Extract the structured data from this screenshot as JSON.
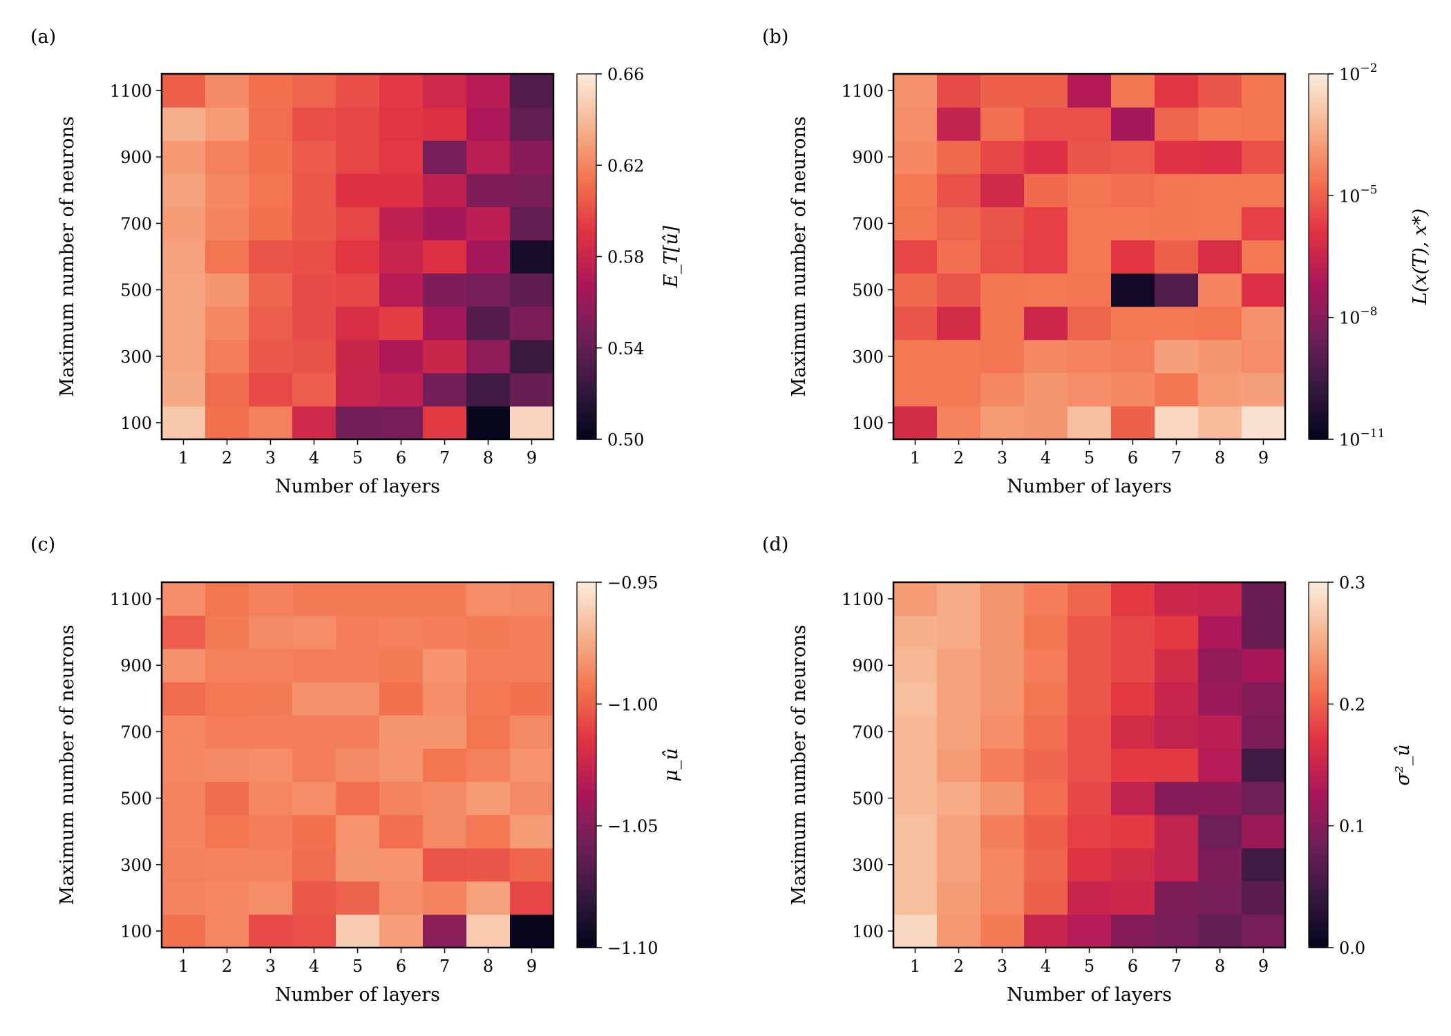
{
  "figure": {
    "common": {
      "xlabel": "Number of layers",
      "ylabel": "Maximum number of neurons",
      "x_tick_labels": [
        "1",
        "2",
        "3",
        "4",
        "5",
        "6",
        "7",
        "8",
        "9"
      ],
      "y_tick_labels": [
        "100",
        "300",
        "500",
        "700",
        "900",
        "1100"
      ]
    }
  },
  "colors": {
    "rocket_stops": [
      "#03051a",
      "#35193e",
      "#701f57",
      "#ad1759",
      "#e13342",
      "#f37651",
      "#f6b48f",
      "#faebdd"
    ],
    "frame": "#000000",
    "background": "#ffffff"
  },
  "chart_data": [
    {
      "id": "a",
      "panel_label": "(a)",
      "type": "heatmap",
      "title": "",
      "xlabel": "Number of layers",
      "ylabel": "Maximum number of neurons",
      "x": [
        1,
        2,
        3,
        4,
        5,
        6,
        7,
        8,
        9
      ],
      "y": [
        100,
        200,
        300,
        400,
        500,
        600,
        700,
        800,
        900,
        1000,
        1100
      ],
      "scale": "linear",
      "vmin": 0.5,
      "vmax": 0.66,
      "colorbar_label": "E_T[û]",
      "colorbar_ticks": [
        0.5,
        0.54,
        0.58,
        0.62,
        0.66
      ],
      "colorbar_tick_labels": [
        "0.50",
        "0.54",
        "0.58",
        "0.62",
        "0.66"
      ],
      "values": [
        [
          0.645,
          0.613,
          0.618,
          0.583,
          0.547,
          0.548,
          0.594,
          0.502,
          0.651
        ],
        [
          0.633,
          0.611,
          0.599,
          0.606,
          0.58,
          0.576,
          0.547,
          0.527,
          0.542
        ],
        [
          0.632,
          0.617,
          0.604,
          0.602,
          0.581,
          0.57,
          0.581,
          0.557,
          0.525
        ],
        [
          0.632,
          0.621,
          0.606,
          0.6,
          0.587,
          0.595,
          0.565,
          0.535,
          0.55
        ],
        [
          0.632,
          0.626,
          0.609,
          0.6,
          0.598,
          0.573,
          0.551,
          0.548,
          0.539
        ],
        [
          0.63,
          0.614,
          0.603,
          0.601,
          0.592,
          0.58,
          0.589,
          0.566,
          0.51
        ],
        [
          0.628,
          0.62,
          0.613,
          0.604,
          0.598,
          0.577,
          0.566,
          0.575,
          0.541
        ],
        [
          0.63,
          0.621,
          0.614,
          0.604,
          0.59,
          0.59,
          0.576,
          0.551,
          0.549
        ],
        [
          0.627,
          0.618,
          0.613,
          0.605,
          0.598,
          0.593,
          0.548,
          0.574,
          0.555
        ],
        [
          0.636,
          0.628,
          0.612,
          0.601,
          0.598,
          0.592,
          0.589,
          0.568,
          0.54
        ],
        [
          0.607,
          0.622,
          0.613,
          0.608,
          0.601,
          0.593,
          0.583,
          0.573,
          0.534
        ]
      ]
    },
    {
      "id": "b",
      "panel_label": "(b)",
      "type": "heatmap",
      "title": "",
      "xlabel": "Number of layers",
      "ylabel": "Maximum number of neurons",
      "x": [
        1,
        2,
        3,
        4,
        5,
        6,
        7,
        8,
        9
      ],
      "y": [
        100,
        200,
        300,
        400,
        500,
        600,
        700,
        800,
        900,
        1000,
        1100
      ],
      "scale": "log10",
      "vmin": 1e-11,
      "vmax": 0.01,
      "colorbar_label": "L(x(T), x*)",
      "colorbar_ticks": [
        1e-11,
        1e-08,
        1e-05,
        0.01
      ],
      "colorbar_tick_labels": [
        {
          "base": "10",
          "exp": "−11"
        },
        {
          "base": "10",
          "exp": "−8"
        },
        {
          "base": "10",
          "exp": "−5"
        },
        {
          "base": "10",
          "exp": "−2"
        }
      ],
      "values": [
        [
          -6.2,
          -4.3,
          -3.8,
          -3.9,
          -3.0,
          -5.0,
          -2.5,
          -3.1,
          -2.2
        ],
        [
          -4.5,
          -4.5,
          -4.2,
          -3.9,
          -4.1,
          -4.2,
          -4.6,
          -3.8,
          -3.7
        ],
        [
          -4.5,
          -4.5,
          -4.6,
          -4.2,
          -4.3,
          -4.4,
          -3.7,
          -3.9,
          -4.1
        ],
        [
          -5.2,
          -6.2,
          -4.6,
          -6.4,
          -4.9,
          -4.5,
          -4.5,
          -4.6,
          -4.0
        ],
        [
          -4.8,
          -5.2,
          -4.6,
          -4.5,
          -4.6,
          -10.6,
          -9.1,
          -4.3,
          -6.0
        ],
        [
          -5.5,
          -4.7,
          -5.3,
          -5.6,
          -4.5,
          -5.8,
          -5.0,
          -6.1,
          -4.5
        ],
        [
          -4.6,
          -4.9,
          -5.2,
          -5.6,
          -4.5,
          -4.5,
          -4.6,
          -4.5,
          -5.6
        ],
        [
          -4.5,
          -5.3,
          -6.3,
          -4.8,
          -4.6,
          -4.7,
          -4.6,
          -4.5,
          -4.5
        ],
        [
          -4.2,
          -4.8,
          -5.5,
          -6.0,
          -5.2,
          -5.1,
          -5.9,
          -6.0,
          -5.3
        ],
        [
          -4.1,
          -6.6,
          -4.7,
          -5.3,
          -5.3,
          -7.3,
          -4.9,
          -4.5,
          -4.6
        ],
        [
          -4.0,
          -5.4,
          -5.0,
          -5.0,
          -7.0,
          -4.6,
          -5.8,
          -5.2,
          -4.6
        ]
      ]
    },
    {
      "id": "c",
      "panel_label": "(c)",
      "type": "heatmap",
      "title": "",
      "xlabel": "Number of layers",
      "ylabel": "Maximum number of neurons",
      "x": [
        1,
        2,
        3,
        4,
        5,
        6,
        7,
        8,
        9
      ],
      "y": [
        100,
        200,
        300,
        400,
        500,
        600,
        700,
        800,
        900,
        1000,
        1100
      ],
      "scale": "linear",
      "vmin": -1.1,
      "vmax": -0.95,
      "colorbar_label": "μ_û",
      "colorbar_ticks": [
        -1.1,
        -1.05,
        -1.0,
        -0.95
      ],
      "colorbar_tick_labels": [
        "−1.10",
        "−1.05",
        "−1.00",
        "−0.95"
      ],
      "values": [
        [
          -0.994,
          -0.987,
          -1.007,
          -1.005,
          -0.962,
          -0.979,
          -1.048,
          -0.963,
          -1.098
        ],
        [
          -0.988,
          -0.987,
          -0.985,
          -1.002,
          -0.999,
          -0.985,
          -0.988,
          -0.978,
          -1.008
        ],
        [
          -0.989,
          -0.988,
          -0.988,
          -0.996,
          -0.982,
          -0.983,
          -1.004,
          -1.003,
          -0.998
        ],
        [
          -0.988,
          -0.993,
          -0.99,
          -0.994,
          -0.983,
          -0.995,
          -0.986,
          -0.992,
          -0.98
        ],
        [
          -0.988,
          -0.996,
          -0.987,
          -0.985,
          -0.995,
          -0.988,
          -0.986,
          -0.98,
          -0.986
        ],
        [
          -0.987,
          -0.986,
          -0.985,
          -0.99,
          -0.986,
          -0.983,
          -0.993,
          -0.989,
          -0.983
        ],
        [
          -0.987,
          -0.99,
          -0.99,
          -0.99,
          -0.99,
          -0.982,
          -0.982,
          -0.993,
          -0.986
        ],
        [
          -0.996,
          -0.992,
          -0.991,
          -0.984,
          -0.984,
          -0.994,
          -0.985,
          -0.992,
          -0.994
        ],
        [
          -0.984,
          -0.989,
          -0.989,
          -0.99,
          -0.99,
          -0.991,
          -0.983,
          -0.99,
          -0.99
        ],
        [
          -1.001,
          -0.991,
          -0.986,
          -0.985,
          -0.99,
          -0.989,
          -0.99,
          -0.991,
          -0.99
        ],
        [
          -0.985,
          -0.993,
          -0.989,
          -0.991,
          -0.991,
          -0.991,
          -0.991,
          -0.985,
          -0.986
        ]
      ]
    },
    {
      "id": "d",
      "panel_label": "(d)",
      "type": "heatmap",
      "title": "",
      "xlabel": "Number of layers",
      "ylabel": "Maximum number of neurons",
      "x": [
        1,
        2,
        3,
        4,
        5,
        6,
        7,
        8,
        9
      ],
      "y": [
        100,
        200,
        300,
        400,
        500,
        600,
        700,
        800,
        900,
        1000,
        1100
      ],
      "scale": "linear",
      "vmin": 0.0,
      "vmax": 0.3,
      "colorbar_label": "σ²_û",
      "colorbar_ticks": [
        0.0,
        0.1,
        0.2,
        0.3
      ],
      "colorbar_tick_labels": [
        "0.0",
        "0.1",
        "0.2",
        "0.3"
      ],
      "values": [
        [
          0.285,
          0.238,
          0.218,
          0.15,
          0.135,
          0.1,
          0.09,
          0.075,
          0.09
        ],
        [
          0.265,
          0.24,
          0.225,
          0.2,
          0.15,
          0.155,
          0.095,
          0.09,
          0.07
        ],
        [
          0.265,
          0.245,
          0.225,
          0.205,
          0.17,
          0.16,
          0.145,
          0.095,
          0.05
        ],
        [
          0.265,
          0.245,
          0.22,
          0.2,
          0.18,
          0.175,
          0.145,
          0.085,
          0.115
        ],
        [
          0.26,
          0.25,
          0.235,
          0.21,
          0.185,
          0.145,
          0.1,
          0.105,
          0.085
        ],
        [
          0.26,
          0.24,
          0.22,
          0.205,
          0.19,
          0.175,
          0.175,
          0.135,
          0.05
        ],
        [
          0.26,
          0.245,
          0.23,
          0.21,
          0.19,
          0.16,
          0.145,
          0.14,
          0.095
        ],
        [
          0.265,
          0.245,
          0.235,
          0.215,
          0.195,
          0.175,
          0.15,
          0.115,
          0.1
        ],
        [
          0.26,
          0.245,
          0.235,
          0.22,
          0.195,
          0.185,
          0.16,
          0.11,
          0.125
        ],
        [
          0.255,
          0.25,
          0.235,
          0.215,
          0.195,
          0.185,
          0.175,
          0.13,
          0.08
        ],
        [
          0.24,
          0.25,
          0.235,
          0.22,
          0.205,
          0.175,
          0.155,
          0.15,
          0.08
        ]
      ]
    }
  ]
}
